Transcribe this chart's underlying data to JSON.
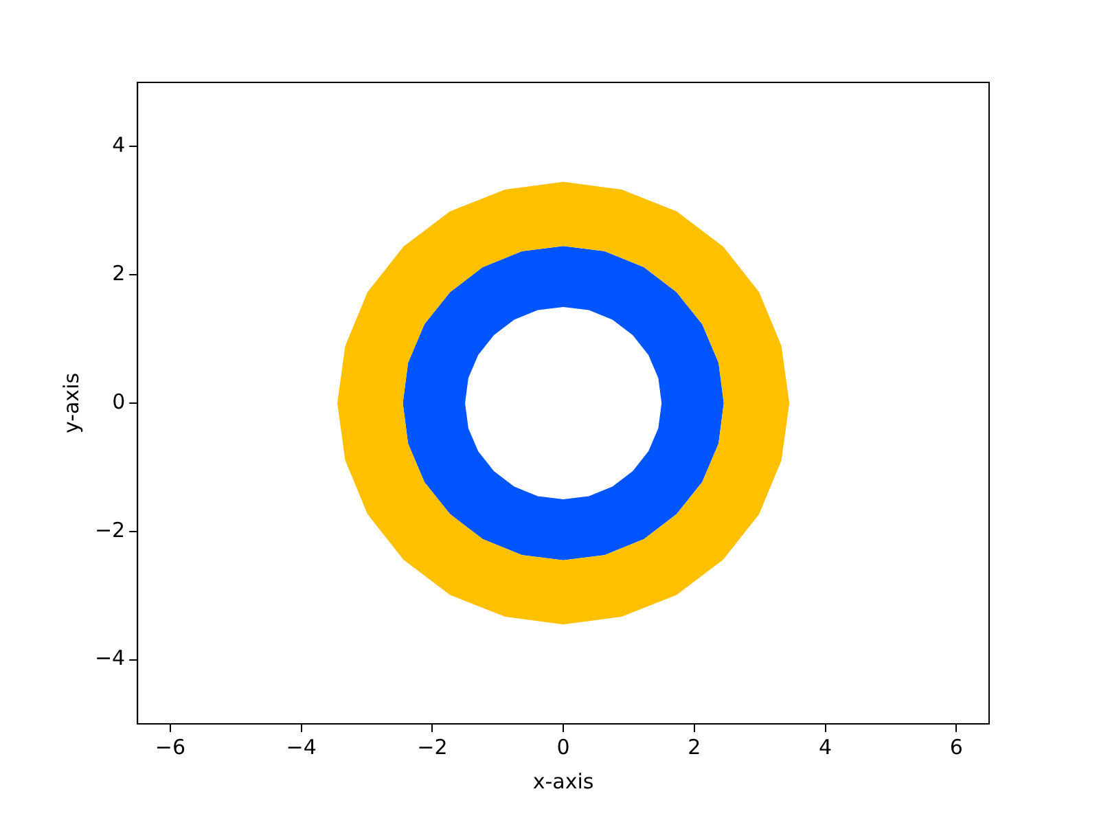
{
  "chart_data": {
    "type": "area",
    "xlabel": "x-axis",
    "ylabel": "y-axis",
    "xlim": [
      -6.5,
      6.5
    ],
    "ylim": [
      -5,
      5
    ],
    "xticks": [
      -6,
      -4,
      -2,
      0,
      2,
      4,
      6
    ],
    "yticks": [
      -4,
      -2,
      0,
      2,
      4
    ],
    "grid": false,
    "legend": false,
    "series": [
      {
        "color": "#ffc000",
        "x": [
          3.45,
          3.33,
          2.99,
          2.44,
          1.73,
          0.89,
          0,
          -0.89,
          -1.73,
          -2.44,
          -2.99,
          -3.33,
          -3.45,
          -3.33,
          -2.99,
          -2.44,
          -1.73,
          -0.89,
          0,
          0.89,
          1.73,
          2.44,
          2.99,
          3.33,
          3.45,
          2.45,
          2.37,
          2.12,
          1.73,
          1.23,
          0.63,
          0,
          -0.63,
          -1.23,
          -1.73,
          -2.12,
          -2.37,
          -2.45,
          -2.37,
          -2.12,
          -1.73,
          -1.23,
          -0.63,
          0,
          0.63,
          1.23,
          1.73,
          2.12,
          2.37,
          2.45
        ],
        "values": [
          0,
          0.89,
          1.73,
          2.44,
          2.99,
          3.33,
          3.45,
          3.33,
          2.99,
          2.44,
          1.73,
          0.89,
          0,
          -0.89,
          -1.73,
          -2.44,
          -2.99,
          -3.33,
          -3.45,
          -3.33,
          -2.99,
          -2.44,
          -1.73,
          -0.89,
          0,
          0,
          -0.63,
          -1.23,
          -1.73,
          -2.12,
          -2.37,
          -2.45,
          -2.37,
          -2.12,
          -1.73,
          -1.23,
          -0.63,
          0,
          0.63,
          1.23,
          1.73,
          2.12,
          2.37,
          2.45,
          2.37,
          2.12,
          1.73,
          1.23,
          0.63,
          0
        ]
      },
      {
        "color": "#0055ff",
        "x": [
          2.45,
          2.37,
          2.12,
          1.73,
          1.23,
          0.63,
          0,
          -0.63,
          -1.23,
          -1.73,
          -2.12,
          -2.37,
          -2.45,
          -2.37,
          -2.12,
          -1.73,
          -1.23,
          -0.63,
          0,
          0.63,
          1.23,
          1.73,
          2.12,
          2.37,
          2.45,
          1.5,
          1.45,
          1.3,
          1.06,
          0.75,
          0.39,
          0,
          -0.39,
          -0.75,
          -1.06,
          -1.3,
          -1.45,
          -1.5,
          -1.45,
          -1.3,
          -1.06,
          -0.75,
          -0.39,
          0,
          0.39,
          0.75,
          1.06,
          1.3,
          1.45,
          1.5
        ],
        "values": [
          0,
          0.63,
          1.23,
          1.73,
          2.12,
          2.37,
          2.45,
          2.37,
          2.12,
          1.73,
          1.23,
          0.63,
          0,
          -0.63,
          -1.23,
          -1.73,
          -2.12,
          -2.37,
          -2.45,
          -2.37,
          -2.12,
          -1.73,
          -1.23,
          -0.63,
          0,
          0,
          -0.39,
          -0.75,
          -1.06,
          -1.3,
          -1.45,
          -1.5,
          -1.45,
          -1.3,
          -1.06,
          -0.75,
          -0.39,
          0,
          0.39,
          0.75,
          1.06,
          1.3,
          1.45,
          1.5,
          1.45,
          1.3,
          1.06,
          0.75,
          0.39,
          0
        ]
      }
    ]
  }
}
